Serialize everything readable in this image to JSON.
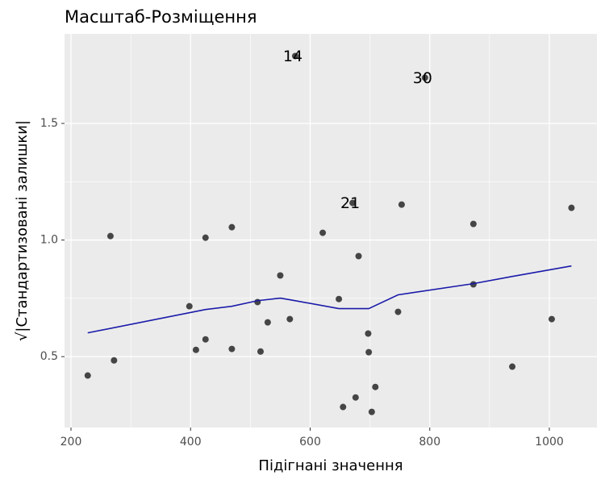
{
  "chart_data": {
    "type": "scatter",
    "title": "Масштаб-Розміщення",
    "x_label": "Підігнані значення",
    "y_label": "√|Стандартизовані залишки|",
    "xlim": [
      189.2,
      1079.6
    ],
    "ylim": [
      0.196,
      1.884
    ],
    "xticks": [
      200,
      400,
      600,
      800,
      1000
    ],
    "yticks": [
      0.5,
      {
        "value": 1,
        "label": "1.0"
      },
      1.5
    ],
    "grid": true,
    "series": [
      {
        "name": "points",
        "color": "#333333",
        "x": [
          228,
          266,
          272,
          398,
          409,
          425,
          425,
          469,
          469,
          512,
          517,
          529,
          550,
          566,
          575,
          621,
          648,
          655,
          671,
          676,
          681,
          697,
          698,
          703,
          709,
          747,
          753,
          792,
          873,
          873,
          938,
          1004,
          1037
        ],
        "values": [
          0.419,
          1.017,
          0.484,
          0.716,
          0.529,
          1.01,
          0.574,
          1.055,
          0.533,
          0.734,
          0.522,
          0.647,
          0.848,
          0.661,
          1.789,
          1.031,
          0.747,
          0.284,
          1.159,
          0.325,
          0.931,
          0.599,
          0.519,
          0.263,
          0.37,
          0.692,
          1.152,
          1.696,
          1.069,
          0.81,
          0.457,
          0.661,
          1.138
        ]
      },
      {
        "name": "smooth",
        "color": "#1a1aaa",
        "x": [
          228,
          425,
          469,
          512,
          550,
          566,
          648,
          698,
          747,
          873,
          938,
          1037
        ],
        "values": [
          0.602,
          0.702,
          0.716,
          0.74,
          0.751,
          0.744,
          0.706,
          0.706,
          0.765,
          0.813,
          0.844,
          0.889
        ]
      }
    ],
    "annotations": [
      {
        "text": "14",
        "x": 575,
        "y": 1.789
      },
      {
        "text": "21",
        "x": 671,
        "y": 1.159
      },
      {
        "text": "30",
        "x": 792,
        "y": 1.696
      }
    ]
  }
}
